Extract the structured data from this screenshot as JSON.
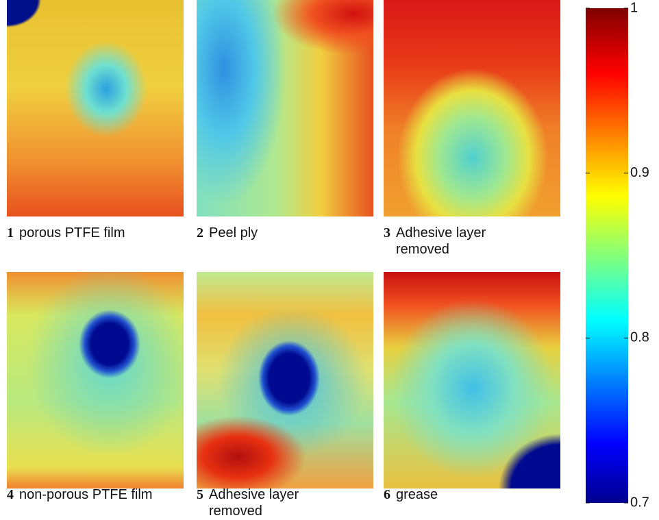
{
  "panels": [
    {
      "number": "1",
      "label": "porous PTFE film"
    },
    {
      "number": "2",
      "label": "Peel ply"
    },
    {
      "number": "3",
      "label": "Adhesive layer removed"
    },
    {
      "number": "4",
      "label": "non-porous PTFE film"
    },
    {
      "number": "5",
      "label": "Adhesive layer removed"
    },
    {
      "number": "6",
      "label": "grease"
    }
  ],
  "colorbar": {
    "lim": [
      0.7,
      1
    ],
    "ticks": [
      0.7,
      0.8,
      0.9,
      1
    ]
  }
}
